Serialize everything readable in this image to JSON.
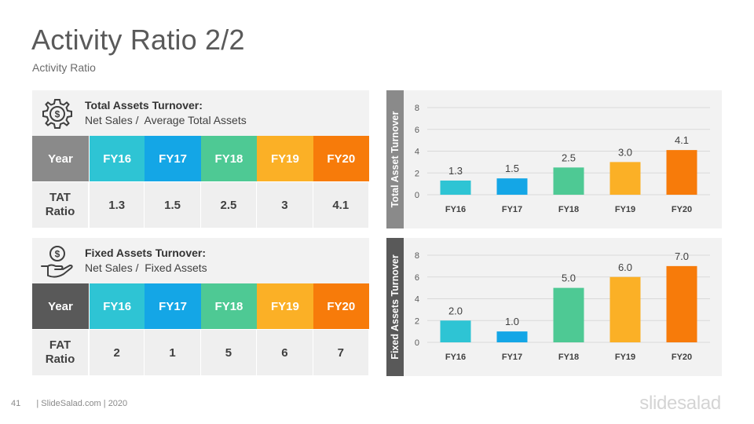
{
  "slide": {
    "title": "Activity Ratio 2/2",
    "subtitle": "Activity Ratio",
    "page_number": "41",
    "footer_text": "| SlideSalad.com | 2020",
    "brand": "slidesalad"
  },
  "colors": {
    "fy16": "#2ec4d4",
    "fy17": "#14a6e6",
    "fy18": "#4ec994",
    "fy19": "#fbb026",
    "fy20": "#f77b0a",
    "year_header_tat": "#8a8a8a",
    "year_header_fat": "#595959"
  },
  "tat": {
    "heading": "Total Assets Turnover:",
    "formula": "Net Sales /  Average Total Assets",
    "icon": "gear-dollar-icon",
    "year_label": "Year",
    "years": [
      "FY16",
      "FY17",
      "FY18",
      "FY19",
      "FY20"
    ],
    "row_label": "TAT\nRatio",
    "values": [
      "1.3",
      "1.5",
      "2.5",
      "3",
      "4.1"
    ]
  },
  "fat": {
    "heading": "Fixed Assets Turnover:",
    "formula": "Net Sales /  Fixed Assets",
    "icon": "hand-dollar-icon",
    "year_label": "Year",
    "years": [
      "FY16",
      "FY17",
      "FY18",
      "FY19",
      "FY20"
    ],
    "row_label": "FAT\nRatio",
    "values": [
      "2",
      "1",
      "5",
      "6",
      "7"
    ]
  },
  "chart_data": [
    {
      "type": "bar",
      "ylabel": "Total Asset Turnover",
      "categories": [
        "FY16",
        "FY17",
        "FY18",
        "FY19",
        "FY20"
      ],
      "values": [
        1.3,
        1.5,
        2.5,
        3.0,
        4.1
      ],
      "data_labels": [
        "1.3",
        "1.5",
        "2.5",
        "3.0",
        "4.1"
      ],
      "ylim": [
        0,
        8
      ],
      "yticks": [
        0,
        2,
        4,
        6,
        8
      ],
      "grid": true,
      "label_color": "#8a8a8a"
    },
    {
      "type": "bar",
      "ylabel": "Fixed Assets Turnover",
      "categories": [
        "FY16",
        "FY17",
        "FY18",
        "FY19",
        "FY20"
      ],
      "values": [
        2.0,
        1.0,
        5.0,
        6.0,
        7.0
      ],
      "data_labels": [
        "2.0",
        "1.0",
        "5.0",
        "6.0",
        "7.0"
      ],
      "ylim": [
        0,
        8
      ],
      "yticks": [
        0,
        2,
        4,
        6,
        8
      ],
      "grid": true,
      "label_color": "#595959"
    }
  ]
}
